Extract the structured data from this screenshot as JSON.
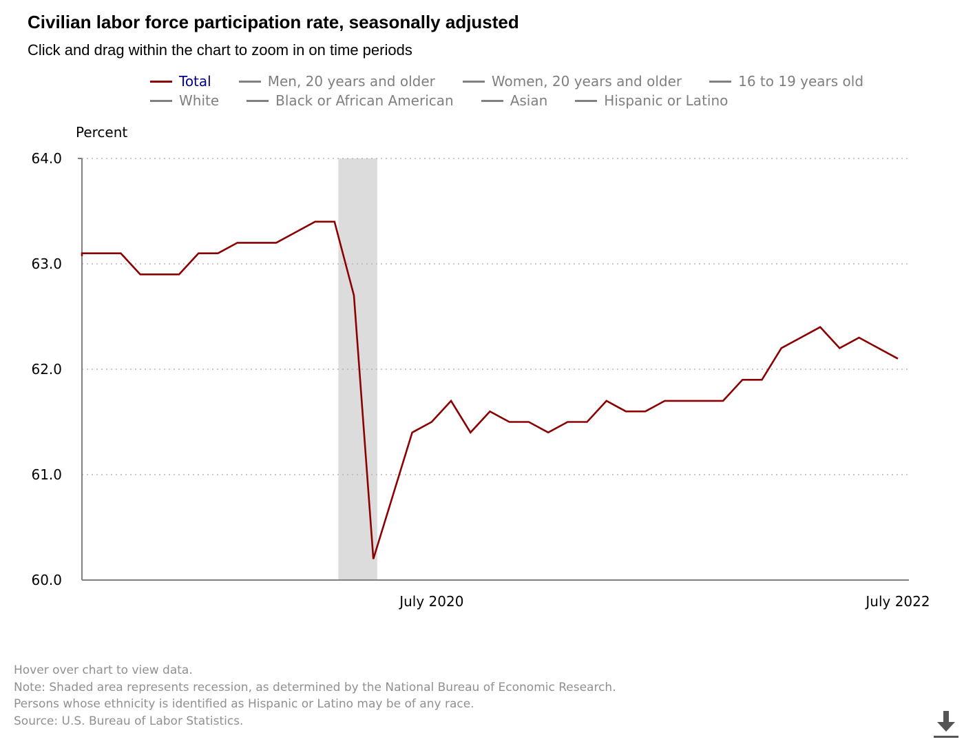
{
  "title": "Civilian labor force participation rate, seasonally adjusted",
  "subtitle": "Click and drag within the chart to zoom in on time periods",
  "legend": {
    "rows": [
      [
        {
          "label": "Total",
          "active": true
        },
        {
          "label": "Men, 20 years and older",
          "active": false
        },
        {
          "label": "Women, 20 years and older",
          "active": false
        },
        {
          "label": "16 to 19 years old",
          "active": false
        }
      ],
      [
        {
          "label": "White",
          "active": false
        },
        {
          "label": "Black or African American",
          "active": false
        },
        {
          "label": "Asian",
          "active": false
        },
        {
          "label": "Hispanic or Latino",
          "active": false
        }
      ]
    ]
  },
  "chart_data": {
    "type": "line",
    "title": "Civilian labor force participation rate, seasonally adjusted",
    "ylabel": "Percent",
    "xlabel": "",
    "ylim": [
      60.0,
      64.0
    ],
    "yticks": [
      "60.0",
      "61.0",
      "62.0",
      "63.0",
      "64.0"
    ],
    "x_ticks": [
      {
        "label": "July 2020",
        "month_index": 18
      },
      {
        "label": "July 2022",
        "month_index": 42
      }
    ],
    "x_range": {
      "start": "January 2019",
      "end": "July 2022",
      "months": 42
    },
    "grid": true,
    "recession": {
      "start_month_index": 13.2,
      "end_month_index": 15.2,
      "color": "#dcdcdc"
    },
    "x": [
      "Jan 2019",
      "Feb 2019",
      "Mar 2019",
      "Apr 2019",
      "May 2019",
      "Jun 2019",
      "Jul 2019",
      "Aug 2019",
      "Sep 2019",
      "Oct 2019",
      "Nov 2019",
      "Dec 2019",
      "Jan 2020",
      "Feb 2020",
      "Mar 2020",
      "Apr 2020",
      "May 2020",
      "Jun 2020",
      "Jul 2020",
      "Aug 2020",
      "Sep 2020",
      "Oct 2020",
      "Nov 2020",
      "Dec 2020",
      "Jan 2021",
      "Feb 2021",
      "Mar 2021",
      "Apr 2021",
      "May 2021",
      "Jun 2021",
      "Jul 2021",
      "Aug 2021",
      "Sep 2021",
      "Oct 2021",
      "Nov 2021",
      "Dec 2021",
      "Jan 2022",
      "Feb 2022",
      "Mar 2022",
      "Apr 2022",
      "May 2022",
      "Jun 2022",
      "Jul 2022"
    ],
    "series": [
      {
        "name": "Total",
        "color": "#8b0000",
        "values": [
          63.1,
          63.1,
          63.1,
          62.9,
          62.9,
          62.9,
          63.1,
          63.1,
          63.2,
          63.2,
          63.2,
          63.3,
          63.4,
          63.4,
          62.7,
          60.2,
          60.8,
          61.4,
          61.5,
          61.7,
          61.4,
          61.6,
          61.5,
          61.5,
          61.4,
          61.5,
          61.5,
          61.7,
          61.6,
          61.6,
          61.7,
          61.7,
          61.7,
          61.7,
          61.9,
          61.9,
          62.2,
          62.3,
          62.4,
          62.2,
          62.3,
          62.2,
          62.1
        ]
      }
    ]
  },
  "notes": [
    "Hover over chart to view data.",
    "Note: Shaded area represents recession, as determined by the National Bureau of Economic Research.",
    "Persons whose ethnicity is identified as Hispanic or Latino may be of any race.",
    "Source: U.S. Bureau of Labor Statistics."
  ],
  "icons": {
    "download": "download-icon"
  }
}
